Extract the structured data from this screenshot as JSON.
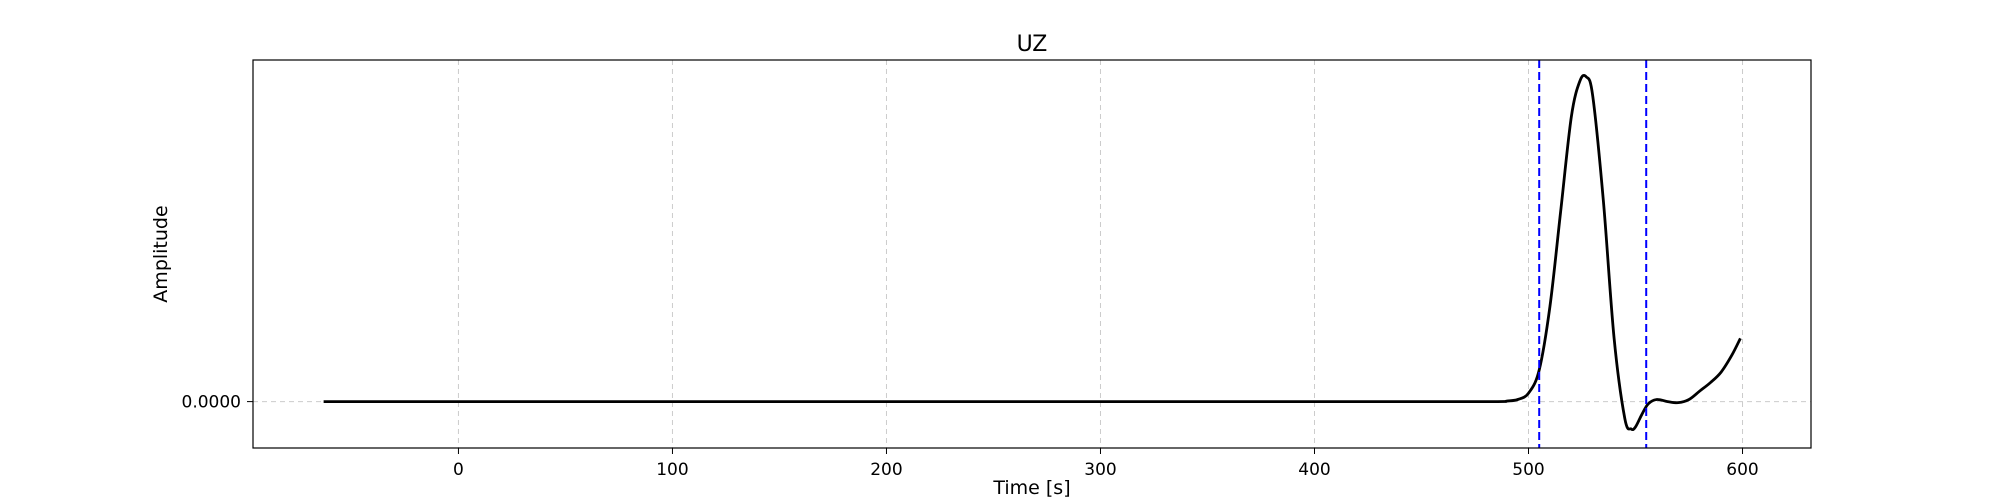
{
  "chart_data": {
    "type": "line",
    "title": "UZ",
    "xlabel": "Time [s]",
    "ylabel": "Amplitude",
    "xlim": [
      -96,
      632
    ],
    "ylim": [
      -0.22,
      1.62
    ],
    "xticks": [
      0,
      100,
      200,
      300,
      400,
      500,
      600
    ],
    "xtick_labels": [
      "0",
      "100",
      "200",
      "300",
      "400",
      "500",
      "600"
    ],
    "yticks": [
      0
    ],
    "ytick_labels": [
      "0.0000"
    ],
    "grid": true,
    "line_color": "#000000",
    "marker_color": "#0000ff",
    "vertical_markers": [
      505,
      555
    ],
    "series": [
      {
        "x": [
          -63,
          0,
          100,
          200,
          300,
          400,
          480,
          490,
          495,
          500,
          505,
          510,
          515,
          520,
          524,
          527,
          530,
          535,
          540,
          545,
          548,
          550,
          553,
          556,
          560,
          565,
          570,
          575,
          580,
          585,
          590,
          595,
          599
        ],
        "y": [
          0,
          0,
          0,
          0,
          0,
          0,
          0,
          0.003,
          0.01,
          0.04,
          0.15,
          0.45,
          0.9,
          1.35,
          1.52,
          1.54,
          1.45,
          0.95,
          0.3,
          -0.08,
          -0.13,
          -0.12,
          -0.06,
          -0.01,
          0.01,
          0.0,
          -0.005,
          0.01,
          0.05,
          0.09,
          0.14,
          0.22,
          0.3
        ]
      }
    ]
  }
}
